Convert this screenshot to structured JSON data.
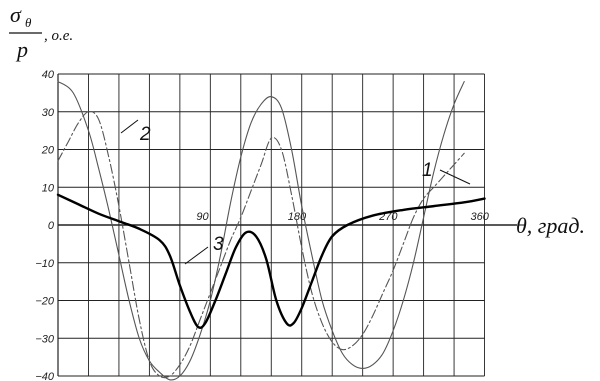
{
  "chart_data": {
    "type": "line",
    "y_label": {
      "numerator": "σ",
      "numerator_sub": "θ",
      "denominator": "p",
      "unit": ", о.е."
    },
    "x_label": "θ, град.",
    "xlim": [
      -60,
      390
    ],
    "ylim": [
      -40,
      40
    ],
    "x_ticks": [
      90,
      180,
      270,
      360
    ],
    "y_ticks": [
      40,
      30,
      20,
      10,
      0,
      -10,
      -20,
      -30,
      -40
    ],
    "grid": true,
    "series": [
      {
        "name": "1",
        "style": "solid-thin",
        "color": "#555555",
        "points": [
          [
            -60,
            38
          ],
          [
            -45,
            35
          ],
          [
            -30,
            25
          ],
          [
            -20,
            15
          ],
          [
            -10,
            4
          ],
          [
            0,
            -8
          ],
          [
            10,
            -20
          ],
          [
            20,
            -30
          ],
          [
            30,
            -36
          ],
          [
            40,
            -39
          ],
          [
            50,
            -41
          ],
          [
            60,
            -40
          ],
          [
            70,
            -36
          ],
          [
            80,
            -29
          ],
          [
            90,
            -20
          ],
          [
            100,
            -8
          ],
          [
            110,
            6
          ],
          [
            120,
            18
          ],
          [
            130,
            27
          ],
          [
            140,
            32
          ],
          [
            150,
            34
          ],
          [
            160,
            31
          ],
          [
            170,
            20
          ],
          [
            180,
            5
          ],
          [
            190,
            -8
          ],
          [
            200,
            -20
          ],
          [
            210,
            -28
          ],
          [
            220,
            -34
          ],
          [
            230,
            -37
          ],
          [
            240,
            -38
          ],
          [
            250,
            -37
          ],
          [
            260,
            -34
          ],
          [
            270,
            -28
          ],
          [
            280,
            -20
          ],
          [
            290,
            -10
          ],
          [
            300,
            2
          ],
          [
            310,
            14
          ],
          [
            320,
            24
          ],
          [
            330,
            32
          ],
          [
            340,
            38
          ]
        ]
      },
      {
        "name": "2",
        "style": "dash-dot",
        "color": "#555555",
        "points": [
          [
            -60,
            17
          ],
          [
            -50,
            22
          ],
          [
            -40,
            27
          ],
          [
            -30,
            30
          ],
          [
            -20,
            28
          ],
          [
            -10,
            18
          ],
          [
            0,
            5
          ],
          [
            10,
            -10
          ],
          [
            20,
            -25
          ],
          [
            30,
            -36
          ],
          [
            40,
            -40
          ],
          [
            50,
            -40
          ],
          [
            60,
            -37
          ],
          [
            70,
            -32
          ],
          [
            80,
            -25
          ],
          [
            90,
            -18
          ],
          [
            100,
            -11
          ],
          [
            110,
            -4
          ],
          [
            120,
            2
          ],
          [
            130,
            9
          ],
          [
            140,
            16
          ],
          [
            150,
            23
          ],
          [
            160,
            20
          ],
          [
            170,
            8
          ],
          [
            180,
            -6
          ],
          [
            190,
            -18
          ],
          [
            200,
            -26
          ],
          [
            210,
            -31
          ],
          [
            220,
            -33
          ],
          [
            230,
            -32
          ],
          [
            240,
            -29
          ],
          [
            250,
            -24
          ],
          [
            260,
            -18
          ],
          [
            270,
            -12
          ],
          [
            280,
            -5
          ],
          [
            290,
            2
          ],
          [
            300,
            7
          ],
          [
            310,
            10
          ],
          [
            320,
            13
          ],
          [
            330,
            16
          ],
          [
            340,
            19
          ]
        ]
      },
      {
        "name": "3",
        "style": "solid-bold",
        "color": "#000000",
        "points": [
          [
            -60,
            8
          ],
          [
            -40,
            5.5
          ],
          [
            -20,
            3
          ],
          [
            0,
            1
          ],
          [
            20,
            -1
          ],
          [
            40,
            -4
          ],
          [
            50,
            -8
          ],
          [
            60,
            -16
          ],
          [
            70,
            -23
          ],
          [
            78,
            -27
          ],
          [
            85,
            -26
          ],
          [
            95,
            -20
          ],
          [
            105,
            -13
          ],
          [
            115,
            -6
          ],
          [
            125,
            -2
          ],
          [
            135,
            -3
          ],
          [
            145,
            -9
          ],
          [
            155,
            -20
          ],
          [
            165,
            -26
          ],
          [
            172,
            -26
          ],
          [
            180,
            -22
          ],
          [
            190,
            -15
          ],
          [
            200,
            -8
          ],
          [
            210,
            -3
          ],
          [
            225,
            0
          ],
          [
            250,
            2.5
          ],
          [
            280,
            4
          ],
          [
            310,
            5
          ],
          [
            340,
            6
          ],
          [
            360,
            7
          ]
        ]
      }
    ]
  }
}
